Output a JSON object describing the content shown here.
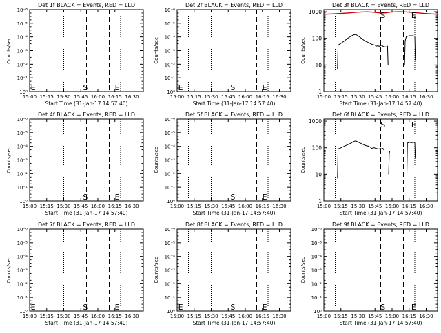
{
  "chart_data": {
    "type": "line",
    "xlabel": "Start Time (31-Jan-17 14:57:40)",
    "ylabel": "Counts/sec",
    "x_tick_labels": [
      "15:00",
      "15:15",
      "15:30",
      "15:45",
      "16:00",
      "16:15",
      "16:30"
    ],
    "x_tick_minutes": [
      0,
      15,
      30,
      45,
      60,
      75,
      90
    ],
    "x_range_minutes": [
      0,
      100
    ],
    "dotted_lines_minutes": [
      10,
      30,
      80
    ],
    "dashed_lines_minutes": [
      50,
      70
    ],
    "marker_labels": {
      "start": "S",
      "end": "E"
    },
    "colors": {
      "events": "#000000",
      "lld": "#cc0000"
    },
    "panels": [
      {
        "title": "Det 1f BLACK = Events, RED = LLD",
        "scale": "exp",
        "y_tick_labels": [
          "10⁰",
          "10⁻¹",
          "10⁻²",
          "10⁻³",
          "10⁻⁴",
          "10⁻⁵",
          "10⁻⁶"
        ],
        "markers": [
          {
            "label": "E",
            "x": 1
          },
          {
            "label": "S",
            "x": 49
          },
          {
            "label": "E",
            "x": 77
          }
        ],
        "series": []
      },
      {
        "title": "Det 2f BLACK = Events, RED = LLD",
        "scale": "exp",
        "y_tick_labels": [
          "10⁰",
          "10⁻¹",
          "10⁻²",
          "10⁻³",
          "10⁻⁴",
          "10⁻⁵",
          "10⁻⁶"
        ],
        "markers": [
          {
            "label": "E",
            "x": 1
          },
          {
            "label": "S",
            "x": 49
          },
          {
            "label": "E",
            "x": 77
          }
        ],
        "series": []
      },
      {
        "title": "Det 3f BLACK = Events, RED = LLD",
        "scale": "log",
        "ylim": [
          1,
          1200
        ],
        "y_ticks": [
          1,
          10,
          100,
          1000
        ],
        "y_tick_labels": [
          "1",
          "10",
          "100",
          "1000"
        ],
        "markers": [
          {
            "label": "S",
            "x": 52
          },
          {
            "label": "E",
            "x": 79
          }
        ],
        "series": [
          {
            "color": "#000000",
            "segments": [
              [
                [
                  12,
                  7
                ],
                [
                  12.5,
                  55
                ],
                [
                  15,
                  65
                ],
                [
                  18,
                  80
                ],
                [
                  21,
                  100
                ],
                [
                  24,
                  120
                ],
                [
                  26,
                  135
                ],
                [
                  28,
                  140
                ],
                [
                  30,
                  125
                ],
                [
                  33,
                  100
                ],
                [
                  36,
                  80
                ],
                [
                  39,
                  70
                ],
                [
                  42,
                  60
                ],
                [
                  45,
                  55
                ],
                [
                  46,
                  50
                ],
                [
                  47,
                  52
                ],
                [
                  49,
                  50
                ],
                [
                  51,
                  55
                ],
                [
                  52,
                  50
                ],
                [
                  53,
                  48
                ],
                [
                  55,
                  47
                ],
                [
                  56,
                  50
                ],
                [
                  56.5,
                  10
                ]
              ],
              [
                [
                  71,
                  10
                ],
                [
                  71.5,
                  80
                ],
                [
                  72.5,
                  115
                ],
                [
                  75,
                  125
                ],
                [
                  78,
                  125
                ],
                [
                  80,
                  120
                ],
                [
                  80.5,
                  15
                ]
              ]
            ]
          },
          {
            "color": "#cc0000",
            "segments": [
              [
                [
                  0,
                  800
                ],
                [
                  8,
                  830
                ],
                [
                  15,
                  860
                ],
                [
                  22,
                  900
                ],
                [
                  28,
                  950
                ],
                [
                  33,
                  980
                ],
                [
                  38,
                  990
                ],
                [
                  43,
                  960
                ],
                [
                  48,
                  920
                ],
                [
                  52,
                  900
                ],
                [
                  55,
                  920
                ],
                [
                  58,
                  960
                ],
                [
                  63,
                  990
                ],
                [
                  68,
                  1000
                ],
                [
                  73,
                  980
                ],
                [
                  78,
                  940
                ],
                [
                  83,
                  900
                ],
                [
                  88,
                  860
                ],
                [
                  94,
                  830
                ],
                [
                  100,
                  800
                ]
              ]
            ]
          }
        ]
      },
      {
        "title": "Det 4f BLACK = Events, RED = LLD",
        "scale": "exp",
        "y_tick_labels": [
          "10⁰",
          "10⁻¹",
          "10⁻²",
          "10⁻³",
          "10⁻⁴",
          "10⁻⁵",
          "10⁻⁶"
        ],
        "markers": [
          {
            "label": "S",
            "x": 49
          },
          {
            "label": "E",
            "x": 77
          }
        ],
        "series": []
      },
      {
        "title": "Det 5f BLACK = Events, RED = LLD",
        "scale": "exp",
        "y_tick_labels": [
          "10⁰",
          "10⁻¹",
          "10⁻²",
          "10⁻³",
          "10⁻⁴",
          "10⁻⁵",
          "10⁻⁶"
        ],
        "markers": [
          {
            "label": "S",
            "x": 49
          },
          {
            "label": "E",
            "x": 77
          }
        ],
        "series": []
      },
      {
        "title": "Det 6f BLACK = Events, RED = LLD",
        "scale": "log",
        "ylim": [
          1,
          1200
        ],
        "y_ticks": [
          1,
          10,
          100,
          1000
        ],
        "y_tick_labels": [
          "1",
          "10",
          "100",
          "1000"
        ],
        "markers": [
          {
            "label": "S",
            "x": 52
          },
          {
            "label": "E",
            "x": 79
          }
        ],
        "series": [
          {
            "color": "#000000",
            "segments": [
              [
                [
                  12,
                  7
                ],
                [
                  12.5,
                  90
                ],
                [
                  15,
                  100
                ],
                [
                  18,
                  115
                ],
                [
                  21,
                  130
                ],
                [
                  24,
                  150
                ],
                [
                  26,
                  170
                ],
                [
                  28,
                  180
                ],
                [
                  30,
                  165
                ],
                [
                  32,
                  150
                ],
                [
                  35,
                  130
                ],
                [
                  37,
                  120
                ],
                [
                  39,
                  115
                ],
                [
                  41,
                  105
                ],
                [
                  42,
                  95
                ],
                [
                  44,
                  100
                ],
                [
                  46,
                  95
                ],
                [
                  48,
                  90
                ],
                [
                  50,
                  95
                ],
                [
                  51,
                  90
                ],
                [
                  52,
                  95
                ],
                [
                  53,
                  80
                ]
              ],
              [
                [
                  57,
                  10
                ],
                [
                  57.5,
                  60
                ],
                [
                  58,
                  75
                ]
              ],
              [
                [
                  73,
                  10
                ],
                [
                  73.5,
                  150
                ],
                [
                  75,
                  160
                ],
                [
                  77,
                  155
                ],
                [
                  79,
                  160
                ],
                [
                  80,
                  155
                ],
                [
                  80.5,
                  40
                ]
              ]
            ]
          }
        ]
      },
      {
        "title": "Det 7f BLACK = Events, RED = LLD",
        "scale": "exp",
        "y_tick_labels": [
          "10⁰",
          "10⁻¹",
          "10⁻²",
          "10⁻³",
          "10⁻⁴",
          "10⁻⁵",
          "10⁻⁶"
        ],
        "markers": [
          {
            "label": "E",
            "x": 1
          },
          {
            "label": "S",
            "x": 49
          },
          {
            "label": "E",
            "x": 77
          }
        ],
        "series": []
      },
      {
        "title": "Det 8f BLACK = Events, RED = LLD",
        "scale": "exp",
        "y_tick_labels": [
          "10⁰",
          "10⁻¹",
          "10⁻²",
          "10⁻³",
          "10⁻⁴",
          "10⁻⁵",
          "10⁻⁶"
        ],
        "markers": [
          {
            "label": "E",
            "x": 1
          },
          {
            "label": "S",
            "x": 49
          },
          {
            "label": "E",
            "x": 77
          }
        ],
        "series": []
      },
      {
        "title": "Det 9f BLACK = Events, RED = LLD",
        "scale": "exp",
        "y_tick_labels": [
          "10⁰",
          "10⁻¹",
          "10⁻²",
          "10⁻³",
          "10⁻⁴",
          "10⁻⁵",
          "10⁻⁶"
        ],
        "markers": [
          {
            "label": "S",
            "x": 52
          },
          {
            "label": "E",
            "x": 79
          }
        ],
        "series": []
      }
    ]
  }
}
